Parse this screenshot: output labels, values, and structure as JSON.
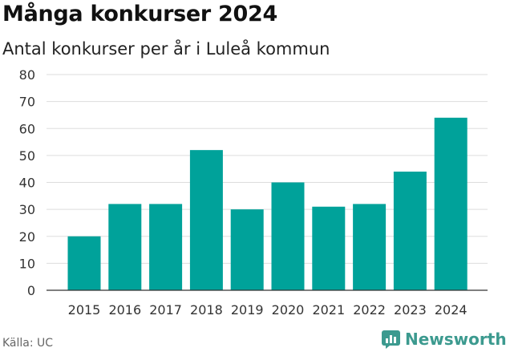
{
  "title": "Många konkurser 2024",
  "subtitle": "Antal konkurser per år i Luleå kommun",
  "source": "Källa: UC",
  "brand": {
    "name": "Newsworthy",
    "logo_icon": "newsworthy-chart-logo-icon",
    "color": "#3c9a8f"
  },
  "colors": {
    "bar": "#00a29a",
    "grid": "#dddddd",
    "axis": "#333333"
  },
  "chart_data": {
    "type": "bar",
    "title": "Många konkurser 2024",
    "subtitle": "Antal konkurser per år i Luleå kommun",
    "categories": [
      "2015",
      "2016",
      "2017",
      "2018",
      "2019",
      "2020",
      "2021",
      "2022",
      "2023",
      "2024"
    ],
    "values": [
      20,
      32,
      32,
      52,
      30,
      40,
      31,
      32,
      44,
      64
    ],
    "yticks": [
      "0",
      "10",
      "20",
      "30",
      "40",
      "50",
      "60",
      "70",
      "80"
    ],
    "ylim": [
      0,
      80
    ],
    "xlabel": "",
    "ylabel": "",
    "grid": true
  }
}
